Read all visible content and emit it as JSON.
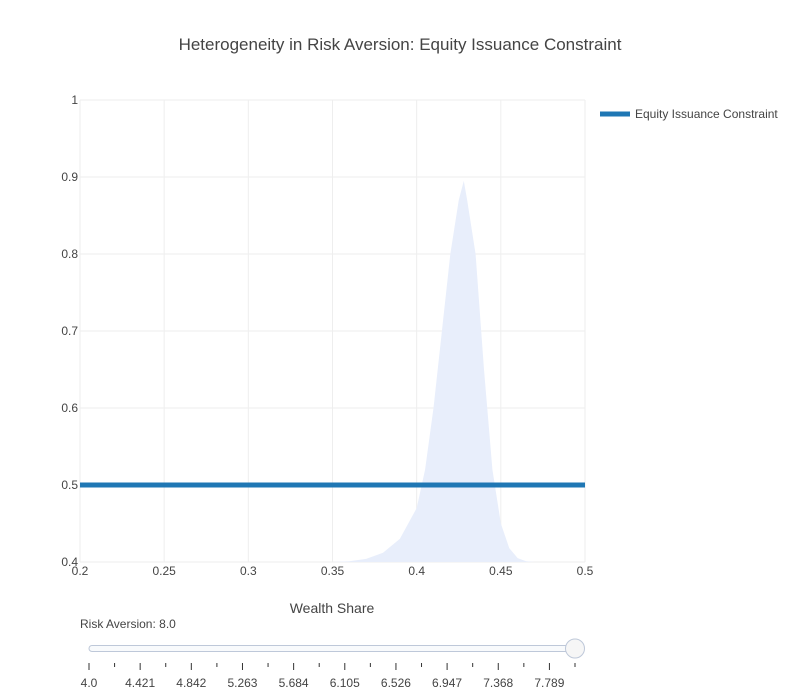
{
  "chart_data": {
    "type": "line",
    "title": "Heterogeneity in Risk Aversion: Equity Issuance Constraint",
    "xlabel": "Wealth Share",
    "ylabel": "",
    "xlim": [
      0.2,
      0.5
    ],
    "ylim": [
      0.4,
      1.0
    ],
    "x_ticks": [
      "0.2",
      "0.25",
      "0.3",
      "0.35",
      "0.4",
      "0.45",
      "0.5"
    ],
    "y_ticks": [
      "0.4",
      "0.5",
      "0.6",
      "0.7",
      "0.8",
      "0.9",
      "1"
    ],
    "grid": true,
    "legend_position": "top-right",
    "series": [
      {
        "name": "Equity Issuance Constraint",
        "color": "#1f77b4",
        "x": [
          0.2,
          0.5
        ],
        "y": [
          0.5,
          0.5
        ]
      }
    ],
    "density": {
      "color": "#e8eefb",
      "x": [
        0.35,
        0.36,
        0.37,
        0.38,
        0.39,
        0.4,
        0.405,
        0.41,
        0.415,
        0.42,
        0.425,
        0.428,
        0.43,
        0.435,
        0.44,
        0.445,
        0.45,
        0.455,
        0.46,
        0.465,
        0.47
      ],
      "y": [
        0.4,
        0.401,
        0.404,
        0.412,
        0.43,
        0.47,
        0.52,
        0.6,
        0.7,
        0.8,
        0.87,
        0.895,
        0.87,
        0.8,
        0.65,
        0.52,
        0.45,
        0.418,
        0.405,
        0.401,
        0.4
      ]
    }
  },
  "slider": {
    "label": "Risk Aversion: 8.0",
    "value": 8.0,
    "min": 4.0,
    "max": 8.0,
    "tick_labels": [
      "4.0",
      "4.421",
      "4.842",
      "5.263",
      "5.684",
      "6.105",
      "6.526",
      "6.947",
      "7.368",
      "7.789"
    ]
  }
}
